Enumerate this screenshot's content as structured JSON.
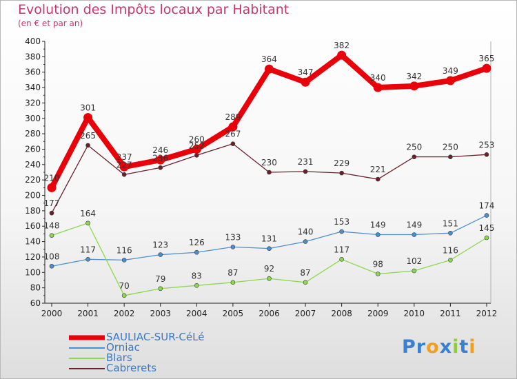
{
  "chart_data": {
    "type": "line",
    "title": "Evolution des Impôts locaux par Habitant",
    "subtitle": "(en € et par an)",
    "xlabel": "",
    "ylabel": "",
    "categories": [
      "2000",
      "2001",
      "2002",
      "2003",
      "2004",
      "2005",
      "2006",
      "2007",
      "2008",
      "2009",
      "2010",
      "2011",
      "2012"
    ],
    "ylim": [
      60,
      400
    ],
    "yticks": [
      60,
      80,
      100,
      120,
      140,
      160,
      180,
      200,
      220,
      240,
      260,
      280,
      300,
      320,
      340,
      360,
      380,
      400
    ],
    "grid": false,
    "legend_position": "bottom-left",
    "series": [
      {
        "name": "SAULIAC-SUR-CéLé",
        "color": "#e8000b",
        "values": [
          210,
          301,
          237,
          246,
          260,
          289,
          364,
          347,
          382,
          340,
          342,
          349,
          365
        ]
      },
      {
        "name": "Orniac",
        "color": "#4d8fcc",
        "values": [
          108,
          117,
          116,
          123,
          126,
          133,
          131,
          140,
          153,
          149,
          149,
          151,
          174
        ]
      },
      {
        "name": "Blars",
        "color": "#8fd650",
        "values": [
          148,
          164,
          70,
          79,
          83,
          87,
          92,
          87,
          117,
          98,
          102,
          116,
          145
        ]
      },
      {
        "name": "Cabrerets",
        "color": "#6b1f2a",
        "values": [
          177,
          265,
          227,
          236,
          252,
          267,
          230,
          231,
          229,
          221,
          250,
          250,
          253
        ]
      }
    ]
  },
  "branding": {
    "letters": [
      "P",
      "r",
      "o",
      "x",
      "i",
      "t",
      "i"
    ],
    "colors": [
      "#3a80d0",
      "#3a80d0",
      "#f0a020",
      "#3a80d0",
      "#90cc40",
      "#3a80d0",
      "#f0a020"
    ]
  }
}
